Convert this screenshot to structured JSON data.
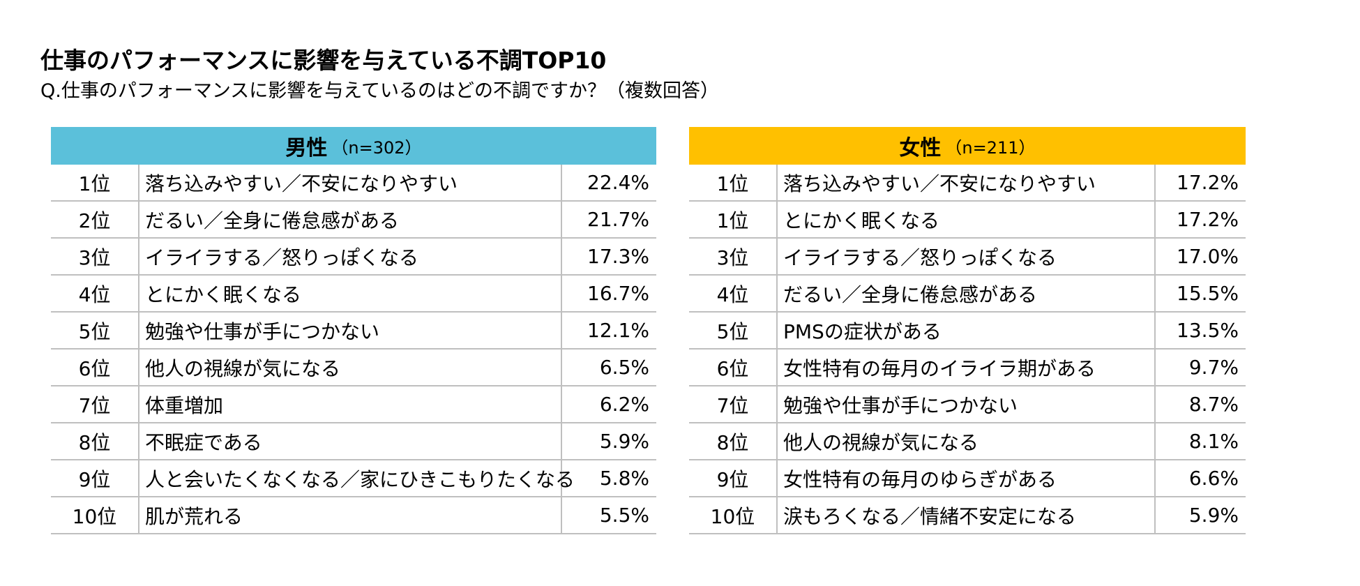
{
  "title": "仕事のパフォーマンスに影響を与えている不調TOP10",
  "subtitle": "Q.仕事のパフォーマンスに影響を与えているのはどの不調ですか？（複数回答）",
  "colors": {
    "male_header": "#5bc0da",
    "female_header": "#ffc000",
    "grid": "#bfbfbf"
  },
  "chart_data": [
    {
      "type": "table",
      "group": "男性",
      "n_label": "（n=302）",
      "ranks": [
        "1位",
        "2位",
        "3位",
        "4位",
        "5位",
        "6位",
        "7位",
        "8位",
        "9位",
        "10位"
      ],
      "categories": [
        "落ち込みやすい／不安になりやすい",
        "だるい／全身に倦怠感がある",
        "イライラする／怒りっぽくなる",
        "とにかく眠くなる",
        "勉強や仕事が手につかない",
        "他人の視線が気になる",
        "体重増加",
        "不眠症である",
        "人と会いたくなくなる／家にひきこもりたくなる",
        "肌が荒れる"
      ],
      "values": [
        "22.4%",
        "21.7%",
        "17.3%",
        "16.7%",
        "12.1%",
        "6.5%",
        "6.2%",
        "5.9%",
        "5.8%",
        "5.5%"
      ]
    },
    {
      "type": "table",
      "group": "女性",
      "n_label": "（n=211）",
      "ranks": [
        "1位",
        "1位",
        "3位",
        "4位",
        "5位",
        "6位",
        "7位",
        "8位",
        "9位",
        "10位"
      ],
      "categories": [
        "落ち込みやすい／不安になりやすい",
        "とにかく眠くなる",
        "イライラする／怒りっぽくなる",
        "だるい／全身に倦怠感がある",
        "PMSの症状がある",
        "女性特有の毎月のイライラ期がある",
        "勉強や仕事が手につかない",
        "他人の視線が気になる",
        "女性特有の毎月のゆらぎがある",
        "涙もろくなる／情緒不安定になる"
      ],
      "values": [
        "17.2%",
        "17.2%",
        "17.0%",
        "15.5%",
        "13.5%",
        "9.7%",
        "8.7%",
        "8.1%",
        "6.6%",
        "5.9%"
      ]
    }
  ]
}
